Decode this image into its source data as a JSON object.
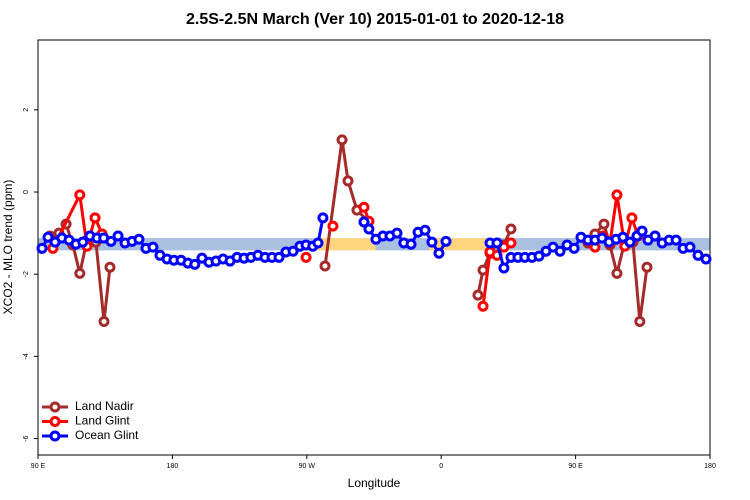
{
  "chart_data": {
    "type": "line",
    "title": "2.5S-2.5N March (Ver 10)   2015-01-01 to 2020-12-18",
    "x_label": "Longitude",
    "y_label": "XCO2 - MLO trend (ppm)",
    "xlim": [
      90,
      540
    ],
    "ylim": [
      -6.4,
      3.7
    ],
    "xticks": [
      {
        "value": 90,
        "label": "90 E"
      },
      {
        "value": 180,
        "label": "180"
      },
      {
        "value": 270,
        "label": "90 W"
      },
      {
        "value": 360,
        "label": "0"
      },
      {
        "value": 450,
        "label": "90 E"
      },
      {
        "value": 540,
        "label": "180"
      }
    ],
    "yticks": [
      -6,
      -4,
      -2,
      0,
      2
    ],
    "legend": "bottom-left",
    "band": {
      "y": [
        -1.42,
        -1.12
      ],
      "segments": [
        {
          "x": [
            90,
            275
          ],
          "color": "#aac0e0"
        },
        {
          "x": [
            275,
            316
          ],
          "color": "#fdd57f"
        },
        {
          "x": [
            316,
            352
          ],
          "color": "#aac0e0"
        },
        {
          "x": [
            352,
            396
          ],
          "color": "#fdd57f"
        },
        {
          "x": [
            396,
            540
          ],
          "color": "#aac0e0"
        }
      ]
    },
    "series": [
      {
        "name": "Land Nadir",
        "color": "#a52a2a",
        "x": [
          98,
          104,
          108.8,
          113.4,
          118,
          122.8,
          128.8,
          134.2,
          138.2,
          null,
          282.2,
          293.6,
          297.6,
          303.6,
          311,
          null,
          384.6,
          388,
          392.7,
          397.4,
          402,
          406.7,
          null,
          458.3,
          463,
          469,
          473,
          477.7,
          483,
          488.4,
          493,
          497.8
        ],
        "values": [
          -1.07,
          -1.0,
          -0.78,
          -1.29,
          -1.98,
          -1.17,
          -1.22,
          -3.15,
          -1.83,
          null,
          -1.8,
          1.27,
          0.27,
          -0.44,
          -0.71,
          null,
          -2.51,
          -1.9,
          -1.49,
          -1.24,
          -1.29,
          -0.9,
          null,
          -1.24,
          -1.02,
          -0.78,
          -1.29,
          -1.98,
          -1.2,
          -1.22,
          -3.15,
          -1.83
        ]
      },
      {
        "name": "Land Glint",
        "color": "#ff0000",
        "x": [
          100,
          118,
          122.8,
          128.2,
          132.9,
          null,
          269.5,
          null,
          287.5,
          null,
          308.3,
          311.6,
          null,
          388,
          392.7,
          397.4,
          402,
          406.7,
          null,
          463,
          468.4,
          473,
          477.7,
          483,
          487.7,
          491.8
        ],
        "values": [
          -1.37,
          -0.07,
          -1.32,
          -0.63,
          -1.02,
          null,
          -1.59,
          null,
          -0.83,
          null,
          -0.37,
          -0.71,
          null,
          -2.78,
          -1.46,
          -1.54,
          -1.34,
          -1.24,
          null,
          -1.34,
          -1.07,
          -1.24,
          -0.07,
          -1.32,
          -0.63,
          -1.07
        ]
      },
      {
        "name": "Ocean Glint",
        "color": "#0000ff",
        "x": [
          92.7,
          96.7,
          101.4,
          106,
          110.8,
          115.4,
          120,
          124.8,
          129.5,
          134,
          138.9,
          143.6,
          148.3,
          153,
          157.6,
          162.3,
          167,
          171.7,
          176.4,
          181,
          185.8,
          190.4,
          195,
          199.8,
          204.5,
          209.2,
          213.9,
          218.6,
          223.3,
          228,
          232.6,
          237.3,
          242,
          246.7,
          251.4,
          256,
          260.8,
          265.4,
          269.5,
          274,
          277.5,
          280.8,
          null,
          308.3,
          311.6,
          316.3,
          321,
          325.7,
          330.4,
          335,
          339.8,
          344.5,
          349.2,
          353.8,
          358.5,
          363.2,
          null,
          392.7,
          397.4,
          402,
          406.7,
          411.4,
          416,
          420.8,
          425.5,
          430.2,
          434.9,
          439.6,
          444.3,
          449,
          453.6,
          458.3,
          463,
          467.7,
          472.4,
          477.1,
          481.7,
          486.4,
          491.1,
          494.5,
          498.5,
          503.2,
          508,
          512.6,
          517.3,
          522,
          526.6,
          532,
          537.3
        ],
        "values": [
          -1.37,
          -1.1,
          -1.22,
          -1.12,
          -1.17,
          -1.27,
          -1.22,
          -1.07,
          -1.12,
          -1.12,
          -1.2,
          -1.07,
          -1.24,
          -1.2,
          -1.15,
          -1.37,
          -1.34,
          -1.54,
          -1.63,
          -1.66,
          -1.66,
          -1.73,
          -1.76,
          -1.61,
          -1.71,
          -1.68,
          -1.63,
          -1.68,
          -1.59,
          -1.61,
          -1.59,
          -1.54,
          -1.59,
          -1.59,
          -1.59,
          -1.46,
          -1.44,
          -1.32,
          -1.29,
          -1.32,
          -1.24,
          -0.63,
          null,
          -0.73,
          -0.9,
          -1.15,
          -1.07,
          -1.07,
          -1.0,
          -1.24,
          -1.27,
          -0.98,
          -0.93,
          -1.22,
          -1.49,
          -1.2,
          null,
          -1.24,
          -1.24,
          -1.85,
          -1.59,
          -1.59,
          -1.59,
          -1.59,
          -1.56,
          -1.44,
          -1.34,
          -1.44,
          -1.29,
          -1.37,
          -1.1,
          -1.17,
          -1.17,
          -1.12,
          -1.22,
          -1.15,
          -1.1,
          -1.22,
          -1.07,
          -0.95,
          -1.17,
          -1.07,
          -1.24,
          -1.17,
          -1.17,
          -1.37,
          -1.34,
          -1.54,
          -1.63
        ]
      }
    ]
  }
}
